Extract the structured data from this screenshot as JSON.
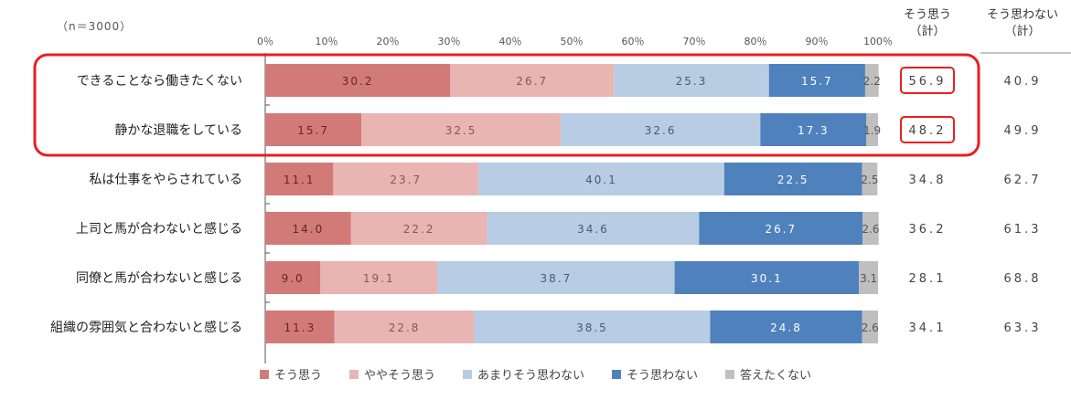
{
  "n_label": "（n＝3000）",
  "header": {
    "agree_total": "そう思う\n（計）",
    "disagree_total": "そう思わない\n（計）"
  },
  "colors": {
    "agree": "#D27A78",
    "somewhat_agree": "#E8B5B3",
    "not_really": "#B8CCE4",
    "disagree": "#4F81BD",
    "no_answer": "#BFBFBF",
    "highlight": "#E81F1F"
  },
  "chart_data": {
    "type": "bar",
    "orientation": "horizontal",
    "stacked": true,
    "title": "",
    "xlim": [
      0,
      100
    ],
    "x_ticks": [
      "0％",
      "10％",
      "20％",
      "30％",
      "40％",
      "50％",
      "60％",
      "70％",
      "80％",
      "90％",
      "100％"
    ],
    "categories": [
      "できることなら働きたくない",
      "静かな退職をしている",
      "私は仕事をやらされている",
      "上司と馬が合わないと感じる",
      "同僚と馬が合わないと感じる",
      "組織の雰囲気と合わないと感じる"
    ],
    "series": [
      {
        "name": "そう思う",
        "values": [
          30.2,
          15.7,
          11.1,
          14.0,
          9.0,
          11.3
        ]
      },
      {
        "name": "ややそう思う",
        "values": [
          26.7,
          32.5,
          23.7,
          22.2,
          19.1,
          22.8
        ]
      },
      {
        "name": "あまりそう思わない",
        "values": [
          25.3,
          32.6,
          40.1,
          34.6,
          38.7,
          38.5
        ]
      },
      {
        "name": "そう思わない",
        "values": [
          15.7,
          17.3,
          22.5,
          26.7,
          30.1,
          24.8
        ]
      },
      {
        "name": "答えたくない",
        "values": [
          2.2,
          1.9,
          2.5,
          2.6,
          3.1,
          2.6
        ]
      }
    ],
    "agree_total": [
      "56.9",
      "48.2",
      "34.8",
      "36.2",
      "28.1",
      "34.1"
    ],
    "disagree_total": [
      "40.9",
      "49.9",
      "62.7",
      "61.3",
      "68.8",
      "63.3"
    ],
    "highlighted_rows": [
      0,
      1
    ],
    "legend_position": "bottom"
  }
}
